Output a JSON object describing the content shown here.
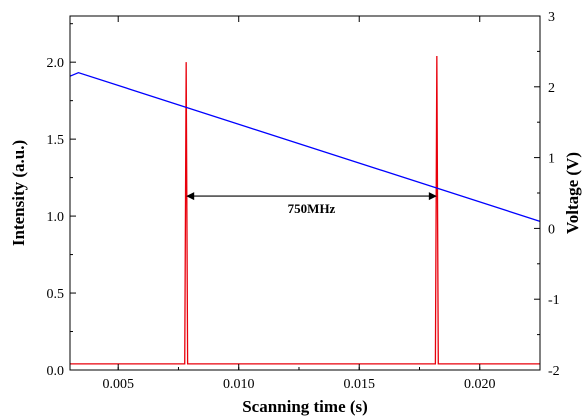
{
  "chart_data": {
    "type": "line",
    "xlabel": "Scanning time (s)",
    "ylabel": "Intensity (a.u.)",
    "y2label": "Voltage (V)",
    "xlim": [
      0.003,
      0.0225
    ],
    "ylim": [
      0,
      2.3
    ],
    "y2lim": [
      -2,
      3
    ],
    "xticks": [
      0.005,
      0.01,
      0.015,
      0.02
    ],
    "xtick_labels": [
      "0.005",
      "0.010",
      "0.015",
      "0.020"
    ],
    "yticks": [
      0.0,
      0.5,
      1.0,
      1.5,
      2.0
    ],
    "ytick_labels": [
      "0.0",
      "0.5",
      "1.0",
      "1.5",
      "2.0"
    ],
    "y2ticks": [
      -2,
      -1,
      0,
      1,
      2,
      3
    ],
    "y2tick_labels": [
      "-2",
      "-1",
      "0",
      "1",
      "2",
      "3"
    ],
    "grid": false,
    "series": [
      {
        "axis": "left",
        "color": "#e8000b",
        "baseline": 0.04,
        "peaks": [
          {
            "x": 0.00782,
            "y": 2.0
          },
          {
            "x": 0.01822,
            "y": 2.04
          }
        ]
      },
      {
        "axis": "right",
        "color": "#0000ff",
        "x": [
          0.003,
          0.00335,
          0.0225
        ],
        "y": [
          2.15,
          2.2,
          0.1
        ]
      }
    ],
    "annotations": [
      {
        "text": "750MHz",
        "x_start": 0.00782,
        "x_end": 0.01822,
        "y": 1.13
      }
    ]
  }
}
